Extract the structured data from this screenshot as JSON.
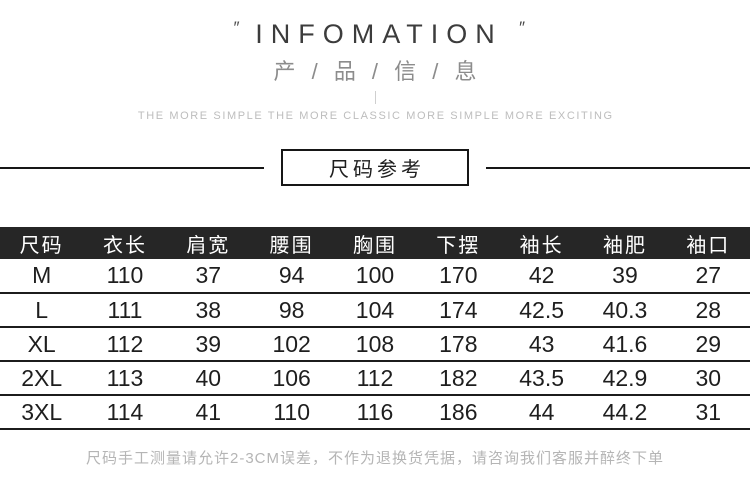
{
  "header": {
    "quote_open": "″",
    "title": "INFOMATION",
    "quote_close": "″",
    "subtitle": "产 / 品 / 信 / 息",
    "tagline": "THE MORE SIMPLE THE MORE CLASSIC MORE SIMPLE MORE EXCITING"
  },
  "section": {
    "label": "尺码参考"
  },
  "size_table": {
    "columns": [
      "尺码",
      "衣长",
      "肩宽",
      "腰围",
      "胸围",
      "下摆",
      "袖长",
      "袖肥",
      "袖口"
    ],
    "rows": [
      [
        "M",
        "110",
        "37",
        "94",
        "100",
        "170",
        "42",
        "39",
        "27"
      ],
      [
        "L",
        "111",
        "38",
        "98",
        "104",
        "174",
        "42.5",
        "40.3",
        "28"
      ],
      [
        "XL",
        "112",
        "39",
        "102",
        "108",
        "178",
        "43",
        "41.6",
        "29"
      ],
      [
        "2XL",
        "113",
        "40",
        "106",
        "112",
        "182",
        "43.5",
        "42.9",
        "30"
      ],
      [
        "3XL",
        "114",
        "41",
        "110",
        "116",
        "186",
        "44",
        "44.2",
        "31"
      ]
    ]
  },
  "footer": {
    "note": "尺码手工测量请允许2-3CM误差，不作为退换货凭据，请咨询我们客服并醉终下单"
  },
  "colors": {
    "page_background": "#ffffff",
    "title_text": "#3c3c3c",
    "subtitle_text": "#8c8c8c",
    "tagline_text": "#bdbdbd",
    "banner_border": "#161616",
    "table_header_bg": "#262626",
    "table_header_text": "#ffffff",
    "table_body_text": "#1e1e1e",
    "row_divider": "#1c1c1c",
    "note_text": "#b5b5b5"
  }
}
